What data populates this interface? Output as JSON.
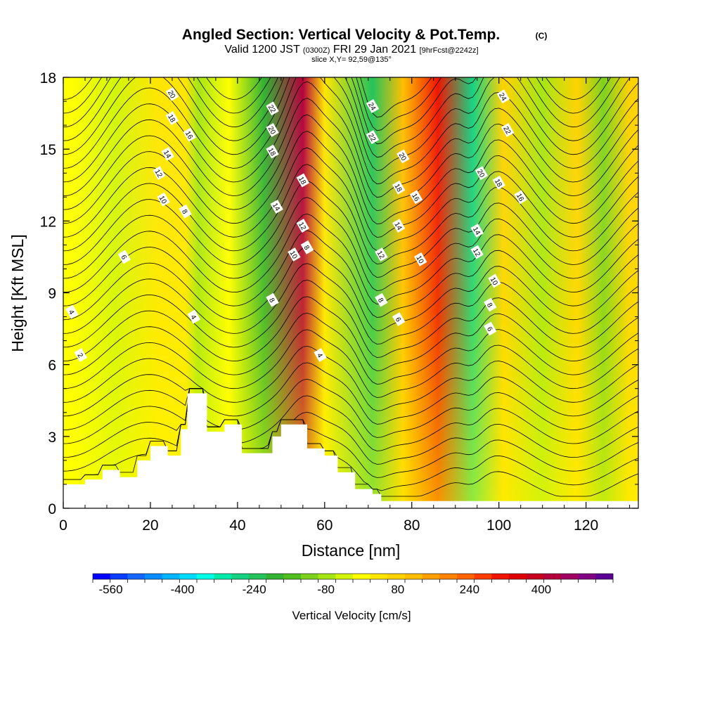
{
  "chart_data": {
    "type": "heatmap",
    "title": "Angled Section: Vertical Velocity & Pot.Temp.",
    "title_unit": "(C)",
    "subtitle_main": "Valid 1200 JST",
    "subtitle_utc": "(0300Z)",
    "subtitle_date": "FRI 29 Jan 2021",
    "subtitle_fcst": "[9hrFcst@2242z]",
    "slice_label": "slice X,Y= 92,59@135°",
    "xlabel": "Distance [nm]",
    "ylabel": "Height [Kft MSL]",
    "xlim": [
      0,
      132
    ],
    "ylim": [
      0,
      18
    ],
    "x_ticks": [
      "0",
      "20",
      "40",
      "60",
      "80",
      "100",
      "120"
    ],
    "y_ticks": [
      "0",
      "3",
      "6",
      "9",
      "12",
      "15",
      "18"
    ],
    "colorbar": {
      "label": "Vertical Velocity [cm/s]",
      "tick_labels": [
        "-560",
        "-400",
        "-240",
        "-80",
        "80",
        "240",
        "400"
      ],
      "range": [
        -600,
        560
      ],
      "colors": [
        "#0000ff",
        "#0a3cff",
        "#1466ff",
        "#0a8cff",
        "#00b4ff",
        "#00dcff",
        "#00ffe6",
        "#00ebaa",
        "#14d282",
        "#23c35a",
        "#32b432",
        "#50be1e",
        "#7dd21e",
        "#a5e614",
        "#d2f50a",
        "#ffff00",
        "#ffe600",
        "#ffd200",
        "#ffbe00",
        "#ffa000",
        "#ff8200",
        "#ff6400",
        "#ff3c00",
        "#f01400",
        "#dc0000",
        "#c8001e",
        "#b4003c",
        "#a00064",
        "#820082",
        "#5a0096"
      ]
    },
    "velocity_band_centers": [
      {
        "x": 2,
        "w": 16
      },
      {
        "x": 12,
        "w": -40
      },
      {
        "x": 22,
        "w": 20
      },
      {
        "x": 28,
        "w": 50
      },
      {
        "x": 31,
        "w": -60
      },
      {
        "x": 38,
        "w": -20
      },
      {
        "x": 46,
        "w": -180
      },
      {
        "x": 55,
        "w": 430
      },
      {
        "x": 60,
        "w": 40
      },
      {
        "x": 71,
        "w": -230
      },
      {
        "x": 78,
        "w": 120
      },
      {
        "x": 86,
        "w": 300
      },
      {
        "x": 94,
        "w": -280
      },
      {
        "x": 101,
        "w": 80
      },
      {
        "x": 110,
        "w": -80
      },
      {
        "x": 118,
        "w": 80
      },
      {
        "x": 124,
        "w": -120
      },
      {
        "x": 130,
        "w": 60
      }
    ],
    "terrain": [
      {
        "x": 0,
        "h": 1.0
      },
      {
        "x": 5,
        "h": 1.2
      },
      {
        "x": 9,
        "h": 1.6
      },
      {
        "x": 13,
        "h": 1.3
      },
      {
        "x": 17,
        "h": 2.0
      },
      {
        "x": 20,
        "h": 2.6
      },
      {
        "x": 24,
        "h": 2.2
      },
      {
        "x": 27,
        "h": 3.3
      },
      {
        "x": 28.5,
        "h": 4.8
      },
      {
        "x": 30.5,
        "h": 4.8
      },
      {
        "x": 33,
        "h": 3.2
      },
      {
        "x": 37,
        "h": 3.5
      },
      {
        "x": 41,
        "h": 2.3
      },
      {
        "x": 44,
        "h": 2.3
      },
      {
        "x": 48,
        "h": 3.0
      },
      {
        "x": 50,
        "h": 3.5
      },
      {
        "x": 53,
        "h": 3.5
      },
      {
        "x": 56,
        "h": 2.5
      },
      {
        "x": 60,
        "h": 2.2
      },
      {
        "x": 63,
        "h": 1.5
      },
      {
        "x": 67,
        "h": 0.8
      },
      {
        "x": 71,
        "h": 0.6
      },
      {
        "x": 73,
        "h": 0.3
      },
      {
        "x": 132,
        "h": 0.3
      }
    ],
    "isentrope_labels": [
      {
        "text": "20",
        "x": 25,
        "y": 17.3
      },
      {
        "text": "18",
        "x": 25,
        "y": 16.3
      },
      {
        "text": "16",
        "x": 29,
        "y": 15.6
      },
      {
        "text": "14",
        "x": 24,
        "y": 14.8
      },
      {
        "text": "12",
        "x": 22,
        "y": 14.0
      },
      {
        "text": "10",
        "x": 23,
        "y": 12.9
      },
      {
        "text": "8",
        "x": 28,
        "y": 12.4
      },
      {
        "text": "6",
        "x": 14,
        "y": 10.5
      },
      {
        "text": "4",
        "x": 2,
        "y": 8.2
      },
      {
        "text": "2",
        "x": 4,
        "y": 6.4
      },
      {
        "text": "4",
        "x": 30,
        "y": 8.0
      },
      {
        "text": "22",
        "x": 48,
        "y": 16.7
      },
      {
        "text": "20",
        "x": 48,
        "y": 15.8
      },
      {
        "text": "18",
        "x": 48,
        "y": 14.9
      },
      {
        "text": "18",
        "x": 55,
        "y": 13.7
      },
      {
        "text": "14",
        "x": 49,
        "y": 12.6
      },
      {
        "text": "12",
        "x": 55,
        "y": 11.8
      },
      {
        "text": "10",
        "x": 53,
        "y": 10.6
      },
      {
        "text": "8",
        "x": 56,
        "y": 10.9
      },
      {
        "text": "8",
        "x": 48,
        "y": 8.7
      },
      {
        "text": "4",
        "x": 59,
        "y": 6.4
      },
      {
        "text": "24",
        "x": 71,
        "y": 16.8
      },
      {
        "text": "22",
        "x": 71,
        "y": 15.5
      },
      {
        "text": "20",
        "x": 78,
        "y": 14.7
      },
      {
        "text": "18",
        "x": 77,
        "y": 13.4
      },
      {
        "text": "16",
        "x": 81,
        "y": 13.0
      },
      {
        "text": "14",
        "x": 77,
        "y": 11.8
      },
      {
        "text": "12",
        "x": 73,
        "y": 10.6
      },
      {
        "text": "10",
        "x": 82,
        "y": 10.4
      },
      {
        "text": "8",
        "x": 73,
        "y": 8.7
      },
      {
        "text": "6",
        "x": 77,
        "y": 7.9
      },
      {
        "text": "24",
        "x": 101,
        "y": 17.2
      },
      {
        "text": "22",
        "x": 102,
        "y": 15.8
      },
      {
        "text": "20",
        "x": 96,
        "y": 14.0
      },
      {
        "text": "18",
        "x": 100,
        "y": 13.6
      },
      {
        "text": "16",
        "x": 105,
        "y": 13.0
      },
      {
        "text": "14",
        "x": 95,
        "y": 11.6
      },
      {
        "text": "12",
        "x": 95,
        "y": 10.7
      },
      {
        "text": "10",
        "x": 99,
        "y": 9.5
      },
      {
        "text": "8",
        "x": 98,
        "y": 8.5
      },
      {
        "text": "6",
        "x": 98,
        "y": 7.5
      }
    ]
  }
}
